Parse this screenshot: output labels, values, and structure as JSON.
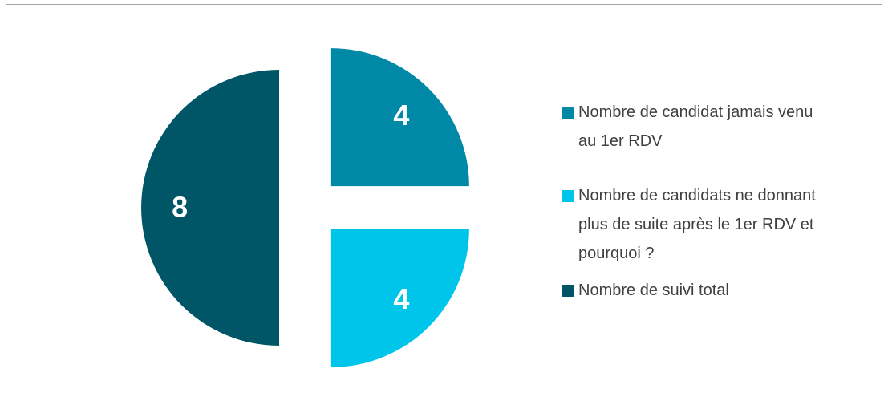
{
  "chart_data": {
    "type": "pie",
    "exploded": true,
    "categories": [
      "Nombre de candidat jamais venu au 1er RDV",
      "Nombre de candidats ne donnant plus de suite après le 1er RDV et pourquoi ?",
      "Nombre de suivi total"
    ],
    "values": [
      4,
      4,
      8
    ],
    "colors": [
      "#0089a7",
      "#00c5eb",
      "#005567"
    ],
    "legend": "right"
  }
}
